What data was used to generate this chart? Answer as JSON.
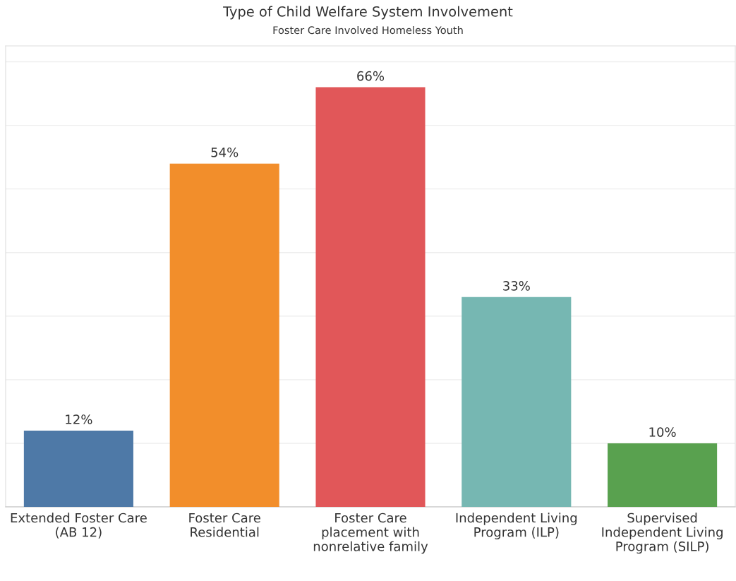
{
  "chart_data": {
    "type": "bar",
    "title": "Type of Child Welfare System Involvement",
    "subtitle": "Foster Care Involved Homeless Youth",
    "categories": [
      "Extended Foster Care\n(AB 12)",
      "Foster Care\nResidential",
      "Foster Care\nplacement with\nnonrelative family",
      "Independent Living\nProgram (ILP)",
      "Supervised\nIndependent Living\nProgram (SILP)"
    ],
    "values": [
      12,
      54,
      66,
      33,
      10
    ],
    "colors": [
      "#4e79a7",
      "#f28e2b",
      "#e15759",
      "#76b7b2",
      "#59a14f"
    ],
    "value_labels": [
      "12%",
      "54%",
      "66%",
      "33%",
      "10%"
    ],
    "ylim": [
      0,
      72.5
    ],
    "yticks": [
      {
        "value": 0,
        "label": null
      },
      {
        "value": 10,
        "label": null
      },
      {
        "value": 20,
        "label": null
      },
      {
        "value": 30,
        "label": null
      },
      {
        "value": 40,
        "label": null
      },
      {
        "value": 50,
        "label": null
      },
      {
        "value": 60,
        "label": null
      },
      {
        "value": 70,
        "label": null
      }
    ],
    "tick_labels": "x",
    "grid": "y"
  }
}
